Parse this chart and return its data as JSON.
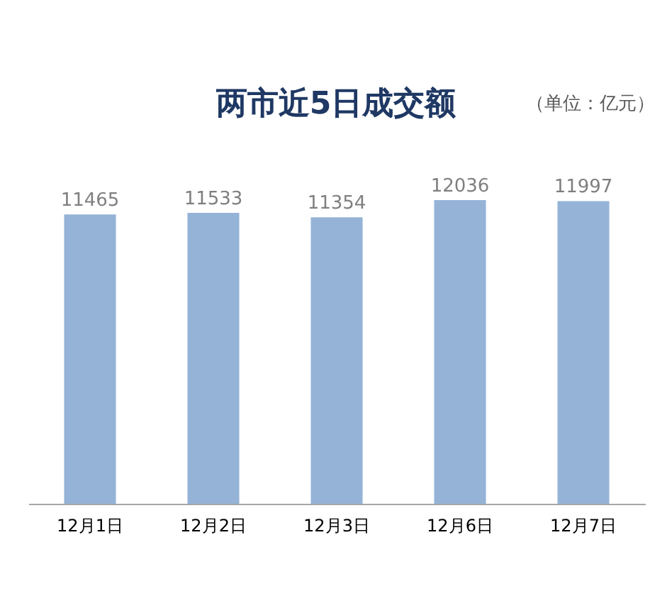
{
  "chart_data": {
    "type": "bar",
    "title": "两市近5日成交额",
    "annotations": [
      "（单位：亿元）"
    ],
    "categories": [
      "12月1日",
      "12月2日",
      "12月3日",
      "12月6日",
      "12月7日"
    ],
    "values": [
      11465,
      11533,
      11354,
      12036,
      11997
    ],
    "color": "#95b3d7",
    "data_labels": true
  }
}
